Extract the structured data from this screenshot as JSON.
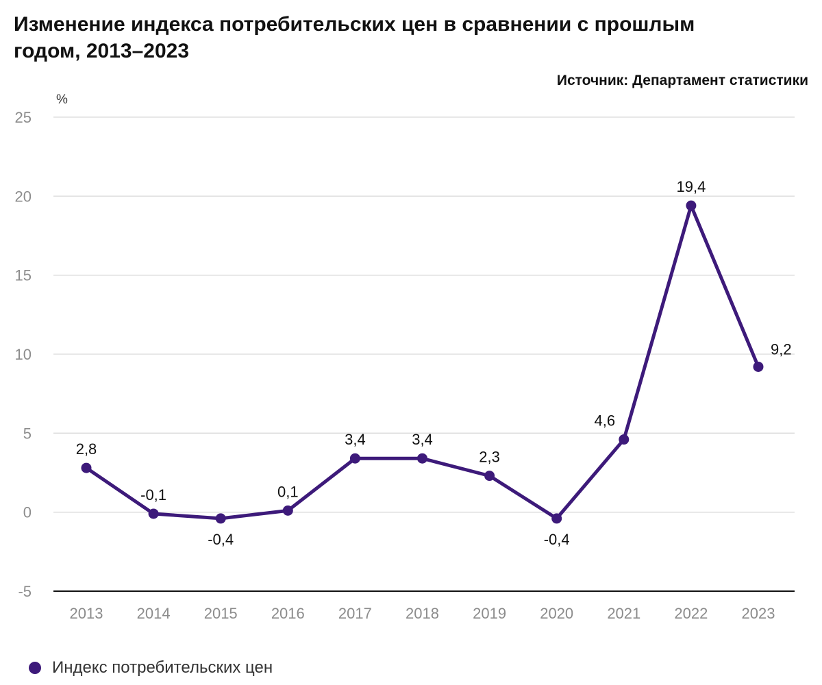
{
  "title": "Изменение индекса потребительских цен в сравнении с прошлым годом, 2013–2023",
  "source": "Источник: Департамент статистики",
  "colors": {
    "series": "#3d1a7a",
    "grid": "#d9d9d9",
    "axis": "#111111",
    "tick_label": "#8c8c8c",
    "data_label": "#111111"
  },
  "chart_data": {
    "type": "line",
    "title": "Изменение индекса потребительских цен в сравнении с прошлым годом, 2013–2023",
    "ylabel": "%",
    "xlabel": "",
    "ylim": [
      -5,
      25
    ],
    "yticks": [
      -5,
      0,
      5,
      10,
      15,
      20,
      25
    ],
    "ytick_labels": [
      "-5",
      "0",
      "5",
      "10",
      "15",
      "20",
      "25"
    ],
    "grid": true,
    "legend_position": "bottom-left",
    "categories": [
      "2013",
      "2014",
      "2015",
      "2016",
      "2017",
      "2018",
      "2019",
      "2020",
      "2021",
      "2022",
      "2023"
    ],
    "series": [
      {
        "name": "Индекс потребительских цен",
        "values": [
          2.8,
          -0.1,
          -0.4,
          0.1,
          3.4,
          3.4,
          2.3,
          -0.4,
          4.6,
          19.4,
          9.2
        ],
        "labels": [
          "2,8",
          "-0,1",
          "-0,4",
          "0,1",
          "3,4",
          "3,4",
          "2,3",
          "-0,4",
          "4,6",
          "19,4",
          "9,2"
        ]
      }
    ]
  }
}
